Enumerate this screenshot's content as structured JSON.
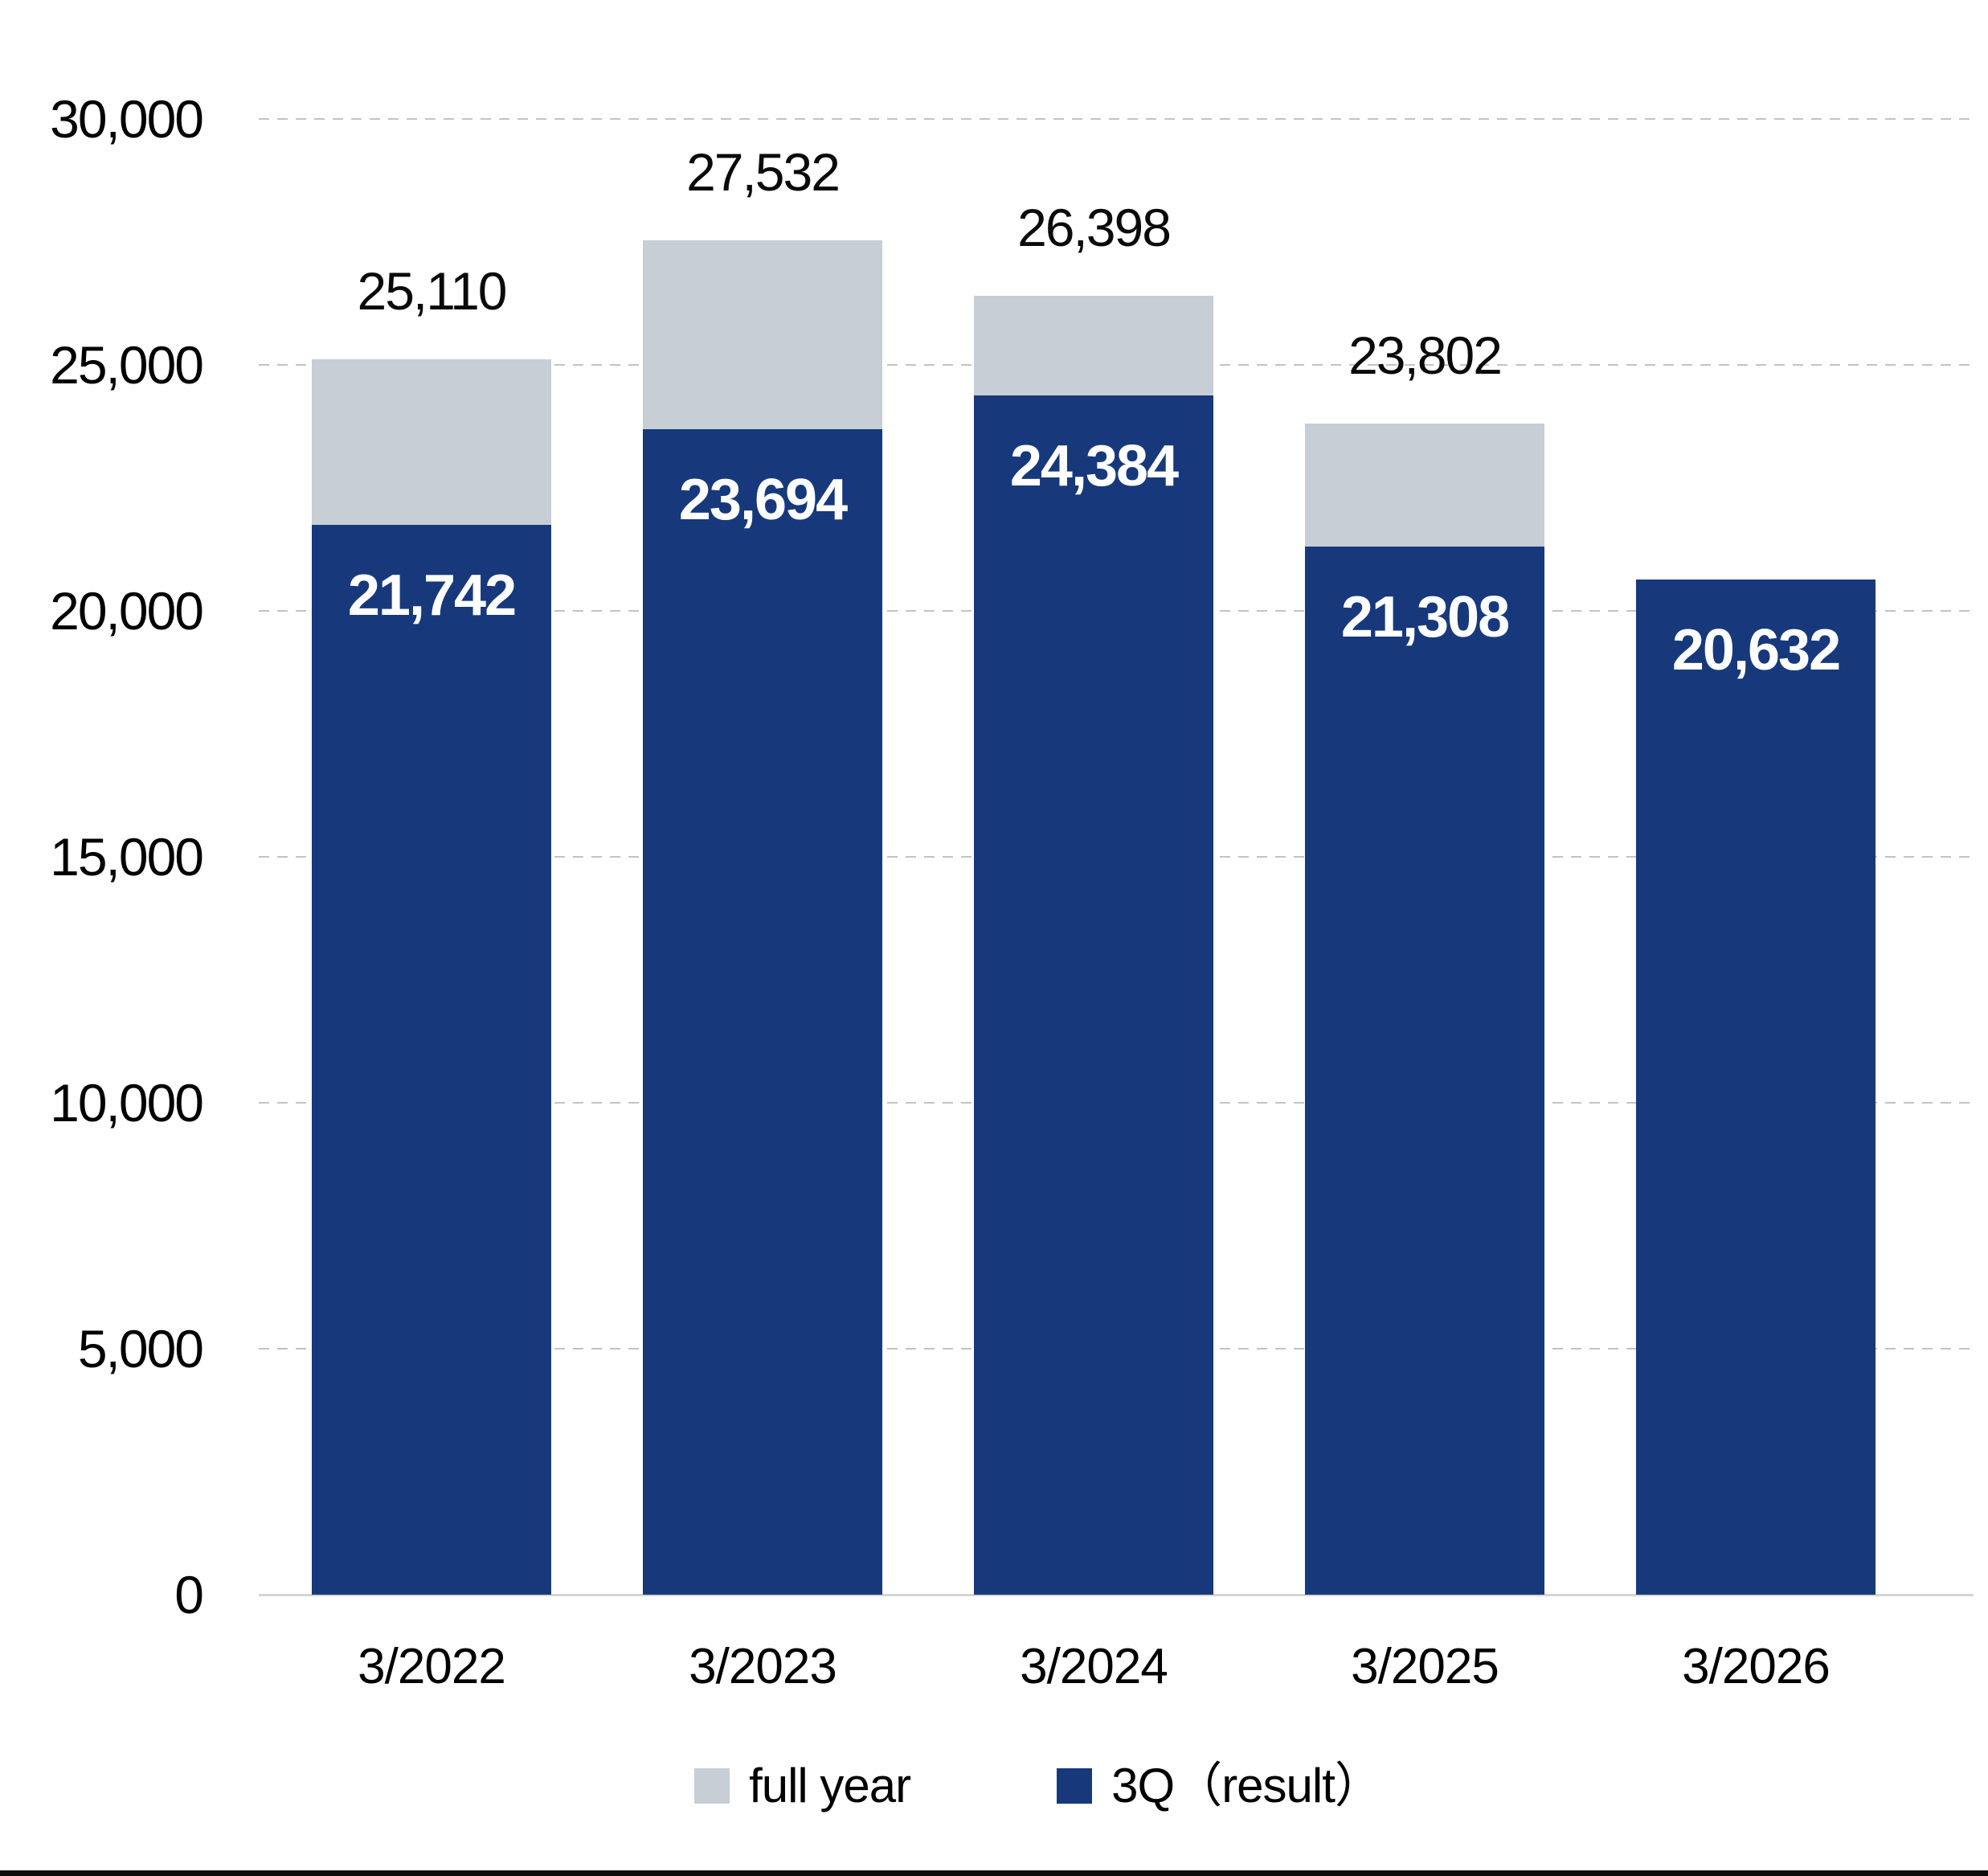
{
  "chart_data": {
    "type": "bar",
    "stacked": true,
    "categories": [
      "3/2022",
      "3/2023",
      "3/2024",
      "3/2025",
      "3/2026"
    ],
    "series": [
      {
        "name": "full year",
        "color": "#C7CED5",
        "values": [
          25110,
          27532,
          26398,
          23802,
          null
        ],
        "labels": [
          "25,110",
          "27,532",
          "26,398",
          "23,802",
          ""
        ]
      },
      {
        "name": "3Q（result）",
        "color": "#17397B",
        "values": [
          21742,
          23694,
          24384,
          21308,
          20632
        ],
        "labels": [
          "21,742",
          "23,694",
          "24,384",
          "21,308",
          "20,632"
        ]
      }
    ],
    "ylim": [
      0,
      30000
    ],
    "yticks": [
      0,
      5000,
      10000,
      15000,
      20000,
      25000,
      30000
    ],
    "ytick_labels": [
      "0",
      "5,000",
      "10,000",
      "15,000",
      "20,000",
      "25,000",
      "30,000"
    ],
    "grid": "horizontal-dashed",
    "legend_position": "bottom",
    "legend": [
      {
        "label": "full year",
        "color": "#C7CED5"
      },
      {
        "label": "3Q（result）",
        "color": "#17397B"
      }
    ],
    "colors": {
      "bar_navy": "#17397B",
      "bar_gray": "#C7CED5",
      "gridline": "#C3C3C3",
      "axis_baseline": "#D5D5D5",
      "text_dark": "#0A0A0A",
      "bar_label_white": "#FFFFFF",
      "bottom_rule": "#0C0C0C"
    }
  }
}
